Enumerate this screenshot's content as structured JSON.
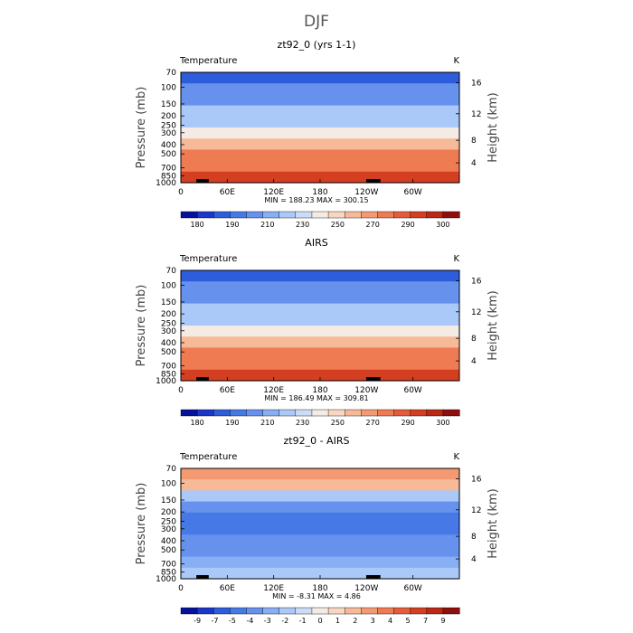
{
  "main_title": "DJF",
  "chart_data": [
    {
      "type": "contour",
      "title": "zt92_0 (yrs 1-1)",
      "variable": "Temperature",
      "units": "K",
      "ylabel_left": "Pressure (mb)",
      "ylabel_right": "Height (km)",
      "x_ticks": [
        "0",
        "60E",
        "120E",
        "180",
        "120W",
        "60W"
      ],
      "pressure_ticks": [
        "70",
        "100",
        "150",
        "200",
        "250",
        "300",
        "400",
        "500",
        "700",
        "850",
        "1000"
      ],
      "height_ticks": [
        "16",
        "12",
        "8",
        "4"
      ],
      "min_max_text": "MIN = 188.23   MAX = 300.15",
      "colorbar_labels": [
        "180",
        "190",
        "210",
        "230",
        "250",
        "270",
        "290",
        "300"
      ],
      "colorbar_colors": [
        "#08119c",
        "#1b37c8",
        "#2e5ddc",
        "#4678e6",
        "#6692ee",
        "#88aef4",
        "#aac8f8",
        "#cadcf8",
        "#f4ece4",
        "#f8d7c2",
        "#f7ba99",
        "#f39a72",
        "#ee7b52",
        "#e55d38",
        "#d43f22",
        "#bb2814",
        "#8e0f0b"
      ],
      "profile": [
        188,
        194,
        205,
        218,
        230,
        244,
        258,
        272,
        286,
        296
      ]
    },
    {
      "type": "contour",
      "title": "AIRS",
      "variable": "Temperature",
      "units": "K",
      "ylabel_left": "Pressure (mb)",
      "ylabel_right": "Height (km)",
      "x_ticks": [
        "0",
        "60E",
        "120E",
        "180",
        "120W",
        "60W"
      ],
      "pressure_ticks": [
        "70",
        "100",
        "150",
        "200",
        "250",
        "300",
        "400",
        "500",
        "700",
        "850",
        "1000"
      ],
      "height_ticks": [
        "16",
        "12",
        "8",
        "4"
      ],
      "min_max_text": "MIN = 186.49   MAX = 309.81",
      "colorbar_labels": [
        "180",
        "190",
        "210",
        "230",
        "250",
        "270",
        "290",
        "300"
      ],
      "colorbar_colors": [
        "#08119c",
        "#1b37c8",
        "#2e5ddc",
        "#4678e6",
        "#6692ee",
        "#88aef4",
        "#aac8f8",
        "#cadcf8",
        "#f4ece4",
        "#f8d7c2",
        "#f7ba99",
        "#f39a72",
        "#ee7b52",
        "#e55d38",
        "#d43f22",
        "#bb2814",
        "#8e0f0b"
      ],
      "profile": [
        187,
        192,
        204,
        217,
        230,
        245,
        259,
        273,
        287,
        298
      ]
    },
    {
      "type": "contour",
      "title": "zt92_0 - AIRS",
      "variable": "Temperature",
      "units": "K",
      "ylabel_left": "Pressure (mb)",
      "ylabel_right": "Height (km)",
      "x_ticks": [
        "0",
        "60E",
        "120E",
        "180",
        "120W",
        "60W"
      ],
      "pressure_ticks": [
        "70",
        "100",
        "150",
        "200",
        "250",
        "300",
        "400",
        "500",
        "700",
        "850",
        "1000"
      ],
      "height_ticks": [
        "16",
        "12",
        "8",
        "4"
      ],
      "min_max_text": "MIN =   -8.31   MAX =    4.86",
      "colorbar_labels": [
        "-9",
        "-7",
        "-5",
        "-4",
        "-3",
        "-2",
        "-1",
        "0",
        "1",
        "2",
        "3",
        "4",
        "5",
        "7",
        "9"
      ],
      "colorbar_colors": [
        "#08119c",
        "#1b37c8",
        "#2e5ddc",
        "#4678e6",
        "#6692ee",
        "#88aef4",
        "#aac8f8",
        "#cadcf8",
        "#f4ece4",
        "#f8d7c2",
        "#f7ba99",
        "#f39a72",
        "#ee7b52",
        "#e55d38",
        "#d43f22",
        "#bb2814",
        "#8e0f0b"
      ],
      "profile": [
        3,
        2,
        -1,
        -3,
        -4,
        -4,
        -3,
        -3,
        -2,
        -1
      ]
    }
  ]
}
